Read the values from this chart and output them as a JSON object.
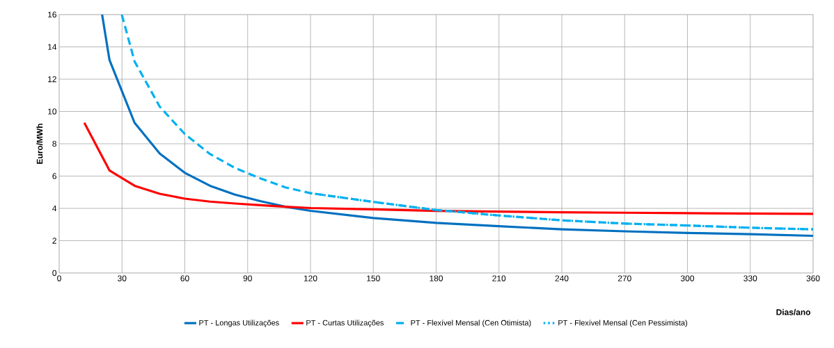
{
  "chart_data": {
    "type": "line",
    "xlabel": "Dias/ano",
    "ylabel": "Euro/MWh",
    "xlim": [
      0,
      360
    ],
    "ylim": [
      0,
      16
    ],
    "xticks": [
      0,
      30,
      60,
      90,
      120,
      150,
      180,
      210,
      240,
      270,
      300,
      330,
      360
    ],
    "yticks": [
      0,
      2,
      4,
      6,
      8,
      10,
      12,
      14,
      16
    ],
    "grid": true,
    "legend": "bottom",
    "series": [
      {
        "name": "PT - Longas Utilizações",
        "color": "#0070c0",
        "line_style": "solid",
        "x": [
          20.5,
          24,
          36,
          48,
          60,
          72,
          84,
          96,
          108,
          120,
          150,
          180,
          210,
          240,
          270,
          300,
          330,
          360
        ],
        "values": [
          16,
          13.2,
          9.3,
          7.4,
          6.2,
          5.4,
          4.85,
          4.45,
          4.1,
          3.85,
          3.4,
          3.1,
          2.9,
          2.7,
          2.58,
          2.48,
          2.4,
          2.3
        ]
      },
      {
        "name": "PT - Curtas Utilizações",
        "color": "#ff0000",
        "line_style": "solid",
        "x": [
          12,
          24,
          36,
          48,
          60,
          72,
          84,
          96,
          108,
          120,
          150,
          180,
          210,
          240,
          270,
          300,
          330,
          360
        ],
        "values": [
          9.3,
          6.35,
          5.4,
          4.9,
          4.6,
          4.42,
          4.3,
          4.2,
          4.1,
          4.02,
          3.94,
          3.84,
          3.8,
          3.76,
          3.73,
          3.7,
          3.68,
          3.66
        ]
      },
      {
        "name": "PT - Flexível Mensal (Cen Otimista)",
        "color": "#00b0f0",
        "line_style": "dashed",
        "x": [
          29.9,
          36,
          48,
          60,
          72,
          84,
          96,
          108,
          120,
          150,
          180,
          210,
          240,
          270,
          300,
          330,
          360
        ],
        "values": [
          16,
          13.1,
          10.3,
          8.6,
          7.37,
          6.5,
          5.86,
          5.3,
          4.94,
          4.4,
          3.9,
          3.56,
          3.26,
          3.06,
          2.94,
          2.8,
          2.7
        ]
      },
      {
        "name": "PT - Flexível Mensal (Cen Pessimista)",
        "color": "#00b0f0",
        "line_style": "dotted",
        "x": [
          120,
          150,
          180,
          210,
          240,
          270,
          300,
          330,
          360
        ],
        "values": [
          4.94,
          4.4,
          3.9,
          3.56,
          3.26,
          3.06,
          2.94,
          2.8,
          2.7
        ]
      }
    ]
  }
}
